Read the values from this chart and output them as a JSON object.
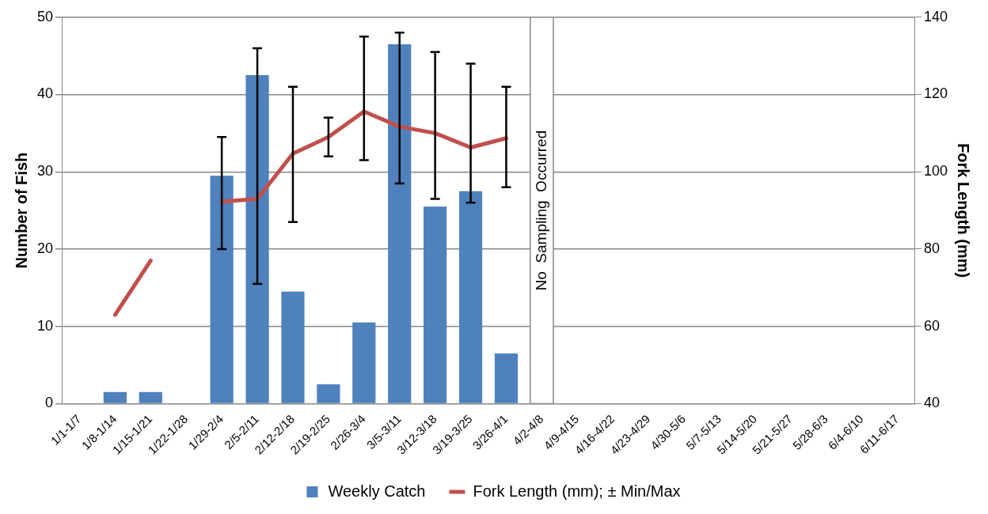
{
  "chart_data": {
    "type": "bar",
    "categories": [
      "1/1-1/7",
      "1/8-1/14",
      "1/15-1/21",
      "1/22-1/28",
      "1/29-2/4",
      "2/5-2/11",
      "2/12-2/18",
      "2/19-2/25",
      "2/26-3/4",
      "3/5-3/11",
      "3/12-3/18",
      "3/19-3/25",
      "3/26-4/1",
      "4/2-4/8",
      "4/9-4/15",
      "4/16-4/22",
      "4/23-4/29",
      "4/30-5/6",
      "5/7-5/13",
      "5/14-5/20",
      "5/21-5/27",
      "5/28-6/3",
      "6/4-6/10",
      "6/11-6/17"
    ],
    "series": [
      {
        "name": "Weekly Catch",
        "color": "#4f81bd",
        "values": [
          0,
          1.5,
          1.5,
          0,
          29.5,
          42.5,
          14.5,
          2.5,
          10.5,
          46.5,
          25.5,
          27.5,
          6.5,
          null,
          null,
          null,
          null,
          null,
          null,
          null,
          null,
          null,
          null,
          null
        ]
      },
      {
        "name": "Fork Length (mm); ± Min/Max",
        "type": "line",
        "axis": "y2",
        "color": "#c0504d",
        "values": [
          null,
          63,
          77,
          null,
          92.3,
          93,
          104.7,
          109,
          115.6,
          111.7,
          110,
          106.3,
          108.7,
          null,
          null,
          null,
          null,
          null,
          null,
          null,
          null,
          null,
          null,
          null
        ],
        "errors": [
          null,
          null,
          null,
          null,
          [
            80,
            109
          ],
          [
            71,
            132
          ],
          [
            87,
            122
          ],
          [
            104,
            114
          ],
          [
            103,
            135
          ],
          [
            97,
            136
          ],
          [
            93,
            131
          ],
          [
            92,
            128
          ],
          [
            96,
            122
          ],
          null,
          null,
          null,
          null,
          null,
          null,
          null,
          null,
          null,
          null,
          null
        ]
      }
    ],
    "ylabel": "Number of Fish",
    "y2label": "Fork Length (mm)",
    "ylim": [
      0,
      50
    ],
    "yticks": [
      0,
      10,
      20,
      30,
      40,
      50
    ],
    "y2lim": [
      40,
      140
    ],
    "y2ticks": [
      40,
      60,
      80,
      100,
      120,
      140
    ],
    "grid": "y",
    "legend": "bottom",
    "marker": "none",
    "bands": [
      {
        "axis": "x",
        "from": "4/2-4/8",
        "to": "4/2-4/8",
        "label": "No  Sampling  Occurred",
        "color": "#ffffff"
      }
    ]
  }
}
